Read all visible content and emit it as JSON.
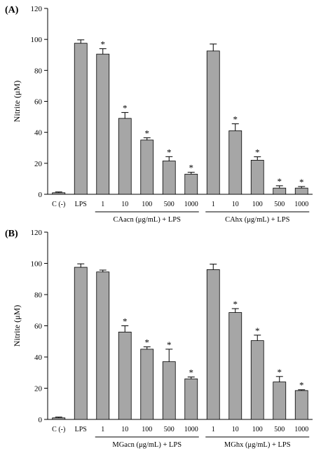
{
  "colors": {
    "bar_fill": "#a6a6a6",
    "bar_stroke": "#000000",
    "axis": "#000000"
  },
  "chart_data": [
    {
      "type": "bar",
      "panel_label": "(A)",
      "ylabel": "Nitrite (μM)",
      "ylim": [
        0,
        120
      ],
      "yticks": [
        0,
        20,
        40,
        60,
        80,
        100,
        120
      ],
      "grid": false,
      "error_bars": true,
      "significance_marker": "*",
      "categories": [
        "C (-)",
        "LPS",
        "1",
        "10",
        "100",
        "500",
        "1000",
        "1",
        "10",
        "100",
        "500",
        "1000"
      ],
      "values": [
        1.0,
        97.5,
        90.5,
        49.0,
        35.0,
        21.5,
        13.0,
        92.5,
        41.0,
        22.0,
        4.0,
        4.0
      ],
      "errors": [
        0.5,
        2.2,
        3.5,
        3.8,
        1.5,
        2.8,
        1.2,
        4.5,
        4.5,
        2.2,
        1.5,
        1.0
      ],
      "significant": [
        false,
        false,
        true,
        true,
        true,
        true,
        true,
        false,
        true,
        true,
        true,
        true
      ],
      "groups": [
        {
          "label": "CAacn (μg/mL) + LPS",
          "start": 2,
          "end": 6
        },
        {
          "label": "CAhx (μg/mL) + LPS",
          "start": 7,
          "end": 11
        }
      ]
    },
    {
      "type": "bar",
      "panel_label": "(B)",
      "ylabel": "Nitrite (μM)",
      "ylim": [
        0,
        120
      ],
      "yticks": [
        0,
        20,
        40,
        60,
        80,
        100,
        120
      ],
      "grid": false,
      "error_bars": true,
      "significance_marker": "*",
      "categories": [
        "C (-)",
        "LPS",
        "1",
        "10",
        "100",
        "500",
        "1000",
        "1",
        "10",
        "100",
        "500",
        "1000"
      ],
      "values": [
        1.0,
        97.5,
        94.5,
        56.0,
        45.0,
        37.0,
        26.0,
        96.0,
        68.5,
        50.5,
        24.0,
        18.5
      ],
      "errors": [
        0.5,
        2.2,
        1.2,
        4.0,
        1.5,
        8.0,
        1.2,
        3.5,
        2.5,
        3.5,
        3.5,
        0.5
      ],
      "significant": [
        false,
        false,
        false,
        true,
        true,
        true,
        true,
        false,
        true,
        true,
        true,
        true
      ],
      "groups": [
        {
          "label": "MGacn (μg/mL) + LPS",
          "start": 2,
          "end": 6
        },
        {
          "label": "MGhx (μg/mL) + LPS",
          "start": 7,
          "end": 11
        }
      ]
    }
  ]
}
